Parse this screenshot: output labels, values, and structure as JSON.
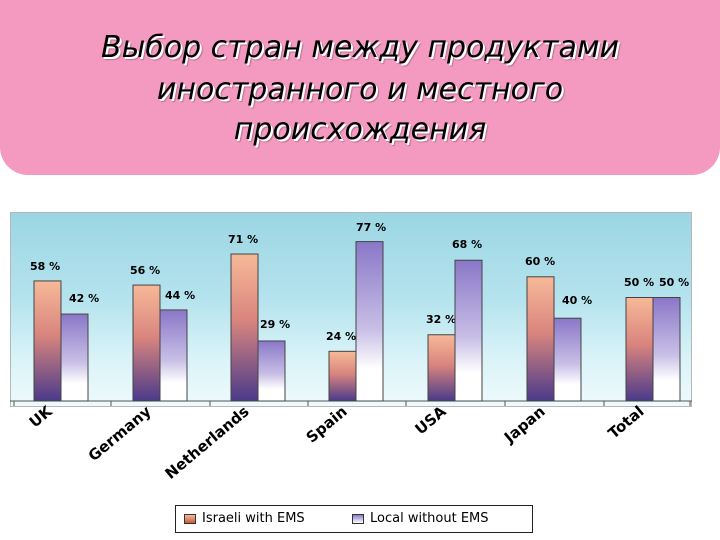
{
  "title": {
    "lines": [
      "Выбор стран между продуктами",
      "иностранного и местного",
      "происхождения"
    ]
  },
  "colors": {
    "title_bg": "#f49ac1",
    "series_1_top": "#f7b998",
    "series_1_bottom": "#4a3a8a",
    "series_2_top": "#8a77c8",
    "series_2_bottom": "#ffffff"
  },
  "chart_data": {
    "type": "bar",
    "categories": [
      "UK",
      "Germany",
      "Netherlands",
      "Spain",
      "USA",
      "Japan",
      "Total"
    ],
    "series": [
      {
        "name": "Israeli with EMS",
        "values": [
          58,
          56,
          71,
          24,
          32,
          60,
          50
        ]
      },
      {
        "name": "Local without EMS",
        "values": [
          42,
          44,
          29,
          77,
          68,
          40,
          50
        ]
      }
    ],
    "data_labels": [
      [
        "58 %",
        "56 %",
        "71 %",
        "24 %",
        "32 %",
        "60 %",
        "50 %"
      ],
      [
        "42 %",
        "44 %",
        "29 %",
        "77 %",
        "68 %",
        "40 %",
        "50 %"
      ]
    ],
    "ylim": [
      0,
      90
    ],
    "grid": false,
    "legend_position": "bottom"
  }
}
